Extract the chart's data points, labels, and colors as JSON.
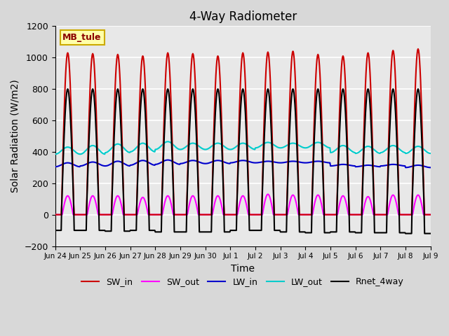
{
  "title": "4-Way Radiometer",
  "xlabel": "Time",
  "ylabel": "Solar Radiation (W/m2)",
  "ylim": [
    -200,
    1200
  ],
  "xlim": [
    0,
    15
  ],
  "station_label": "MB_tule",
  "fig_bg_color": "#d8d8d8",
  "plot_bg_color": "#e8e8e8",
  "grid_color": "white",
  "tick_labels": [
    "Jun 24",
    "Jun 25",
    "Jun 26",
    "Jun 27",
    "Jun 28",
    "Jun 29",
    "Jun 30",
    "Jul 1",
    "Jul 2",
    "Jul 3",
    "Jul 4",
    "Jul 5",
    "Jul 6",
    "Jul 7",
    "Jul 8",
    "Jul 9"
  ],
  "legend": [
    {
      "label": "SW_in",
      "color": "#cc0000",
      "lw": 1.5
    },
    {
      "label": "SW_out",
      "color": "#ff00ff",
      "lw": 1.5
    },
    {
      "label": "LW_in",
      "color": "#0000cc",
      "lw": 1.5
    },
    {
      "label": "LW_out",
      "color": "#00cccc",
      "lw": 1.5
    },
    {
      "label": "Rnet_4way",
      "color": "#000000",
      "lw": 1.5
    }
  ],
  "n_days": 15,
  "SW_in_peak": [
    1030,
    1025,
    1020,
    1010,
    1030,
    1025,
    1010,
    1030,
    1035,
    1040,
    1020,
    1010,
    1030,
    1045,
    1055
  ],
  "SW_out_peak": [
    120,
    120,
    120,
    110,
    120,
    120,
    120,
    120,
    130,
    125,
    125,
    120,
    115,
    125,
    125
  ],
  "LW_in_base": [
    305,
    310,
    310,
    315,
    320,
    325,
    325,
    330,
    330,
    330,
    330,
    310,
    305,
    310,
    300
  ],
  "LW_in_day": [
    330,
    335,
    340,
    345,
    348,
    345,
    345,
    345,
    340,
    340,
    340,
    320,
    315,
    320,
    315
  ],
  "LW_out_base": [
    385,
    385,
    395,
    400,
    415,
    415,
    415,
    415,
    425,
    425,
    425,
    395,
    390,
    395,
    390
  ],
  "LW_out_day": [
    430,
    440,
    450,
    455,
    465,
    455,
    455,
    455,
    460,
    455,
    460,
    440,
    435,
    440,
    435
  ],
  "Rnet_peak": [
    800,
    800,
    800,
    800,
    800,
    800,
    800,
    800,
    800,
    800,
    800,
    800,
    800,
    800,
    800
  ],
  "Rnet_night": [
    -100,
    -100,
    -105,
    -100,
    -110,
    -110,
    -110,
    -100,
    -100,
    -110,
    -115,
    -110,
    -115,
    -115,
    -120
  ]
}
